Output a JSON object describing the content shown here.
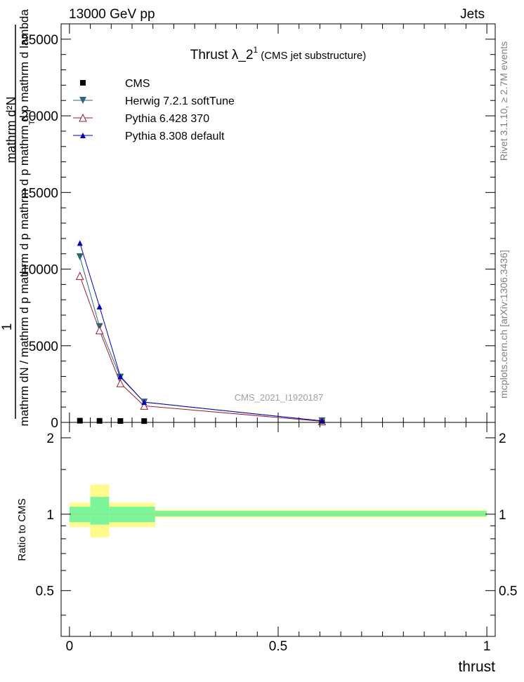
{
  "header": {
    "left": "13000 GeV pp",
    "right": "Jets"
  },
  "side_labels": {
    "rivet": "Rivet 3.1.10, ≥ 2.7M events",
    "mcplots": "mcplots.cern.ch [arXiv:1306.3436]"
  },
  "watermark": "CMS_2021_I1920187",
  "colors": {
    "cms": "#000000",
    "herwig": "#2f6774",
    "pythia6": "#9b1b30",
    "pythia8": "#0000cc",
    "band_stat": "#7cf59a",
    "band_syst": "#fffb8a",
    "ratio_line": "#8ee58e"
  },
  "chart_data": [
    {
      "type": "line",
      "title_main": "Thrust λ_2",
      "title_sup": "1",
      "title_sub": "(CMS jet substructure)",
      "ylabel_top": "1",
      "ylabel_num": "mathrm d²N",
      "ylabel_den_line1": "mathrm d p   mathrm d p   mathrm d lambda",
      "ylabel_den_sub": "T              T",
      "ylabel_den_line2": "mathrm dN / mathrm d p   mathrm d p",
      "ylabel": "mathrm d²N / mathrm d p_T mathrm d lambda",
      "xlim": [
        -0.02,
        1.02
      ],
      "ylim": [
        0,
        26000
      ],
      "yticks": [
        0,
        5000,
        10000,
        15000,
        20000,
        25000
      ],
      "yticklabels": [
        "0",
        "5000",
        "10000",
        "15000",
        "20000",
        "25000"
      ],
      "legend_position": "top-left",
      "series": [
        {
          "name": "CMS",
          "marker": "square",
          "x": [
            0.025,
            0.072,
            0.122,
            0.179,
            0.605
          ],
          "y": [
            110,
            100,
            90,
            85,
            5
          ]
        },
        {
          "name": "Herwig 7.2.1 softTune",
          "marker": "triangle-down",
          "x": [
            0.025,
            0.072,
            0.122,
            0.179,
            0.605
          ],
          "y": [
            10800,
            6250,
            2950,
            1320,
            95
          ]
        },
        {
          "name": "Pythia 6.428 370",
          "marker": "triangle-open",
          "x": [
            0.025,
            0.072,
            0.122,
            0.179,
            0.605
          ],
          "y": [
            9550,
            6000,
            2550,
            1080,
            70
          ]
        },
        {
          "name": "Pythia 8.308 default",
          "marker": "triangle-up",
          "x": [
            0.025,
            0.072,
            0.122,
            0.179,
            0.605
          ],
          "y": [
            11700,
            7550,
            3000,
            1320,
            95
          ]
        }
      ]
    },
    {
      "type": "area",
      "xlabel": "thrust",
      "ylabel": "Ratio to CMS",
      "xlim": [
        -0.02,
        1.02
      ],
      "ylim": [
        0.33,
        2.3
      ],
      "yticks": [
        0.5,
        1,
        2
      ],
      "yticklabels": [
        "0.5",
        "1",
        "2"
      ],
      "xticks": [
        0,
        0.5,
        1
      ],
      "xticklabels": [
        "0",
        "0.5",
        "1"
      ],
      "bins": [
        {
          "x": [
            0.0,
            0.05
          ],
          "stat": [
            0.93,
            1.07
          ],
          "syst": [
            0.89,
            1.11
          ]
        },
        {
          "x": [
            0.05,
            0.095
          ],
          "stat": [
            0.91,
            1.17
          ],
          "syst": [
            0.81,
            1.31
          ]
        },
        {
          "x": [
            0.095,
            0.205
          ],
          "stat": [
            0.93,
            1.07
          ],
          "syst": [
            0.89,
            1.11
          ]
        },
        {
          "x": [
            0.205,
            1.0
          ],
          "stat": [
            0.98,
            1.03
          ],
          "syst": [
            0.97,
            1.04
          ]
        }
      ]
    }
  ]
}
